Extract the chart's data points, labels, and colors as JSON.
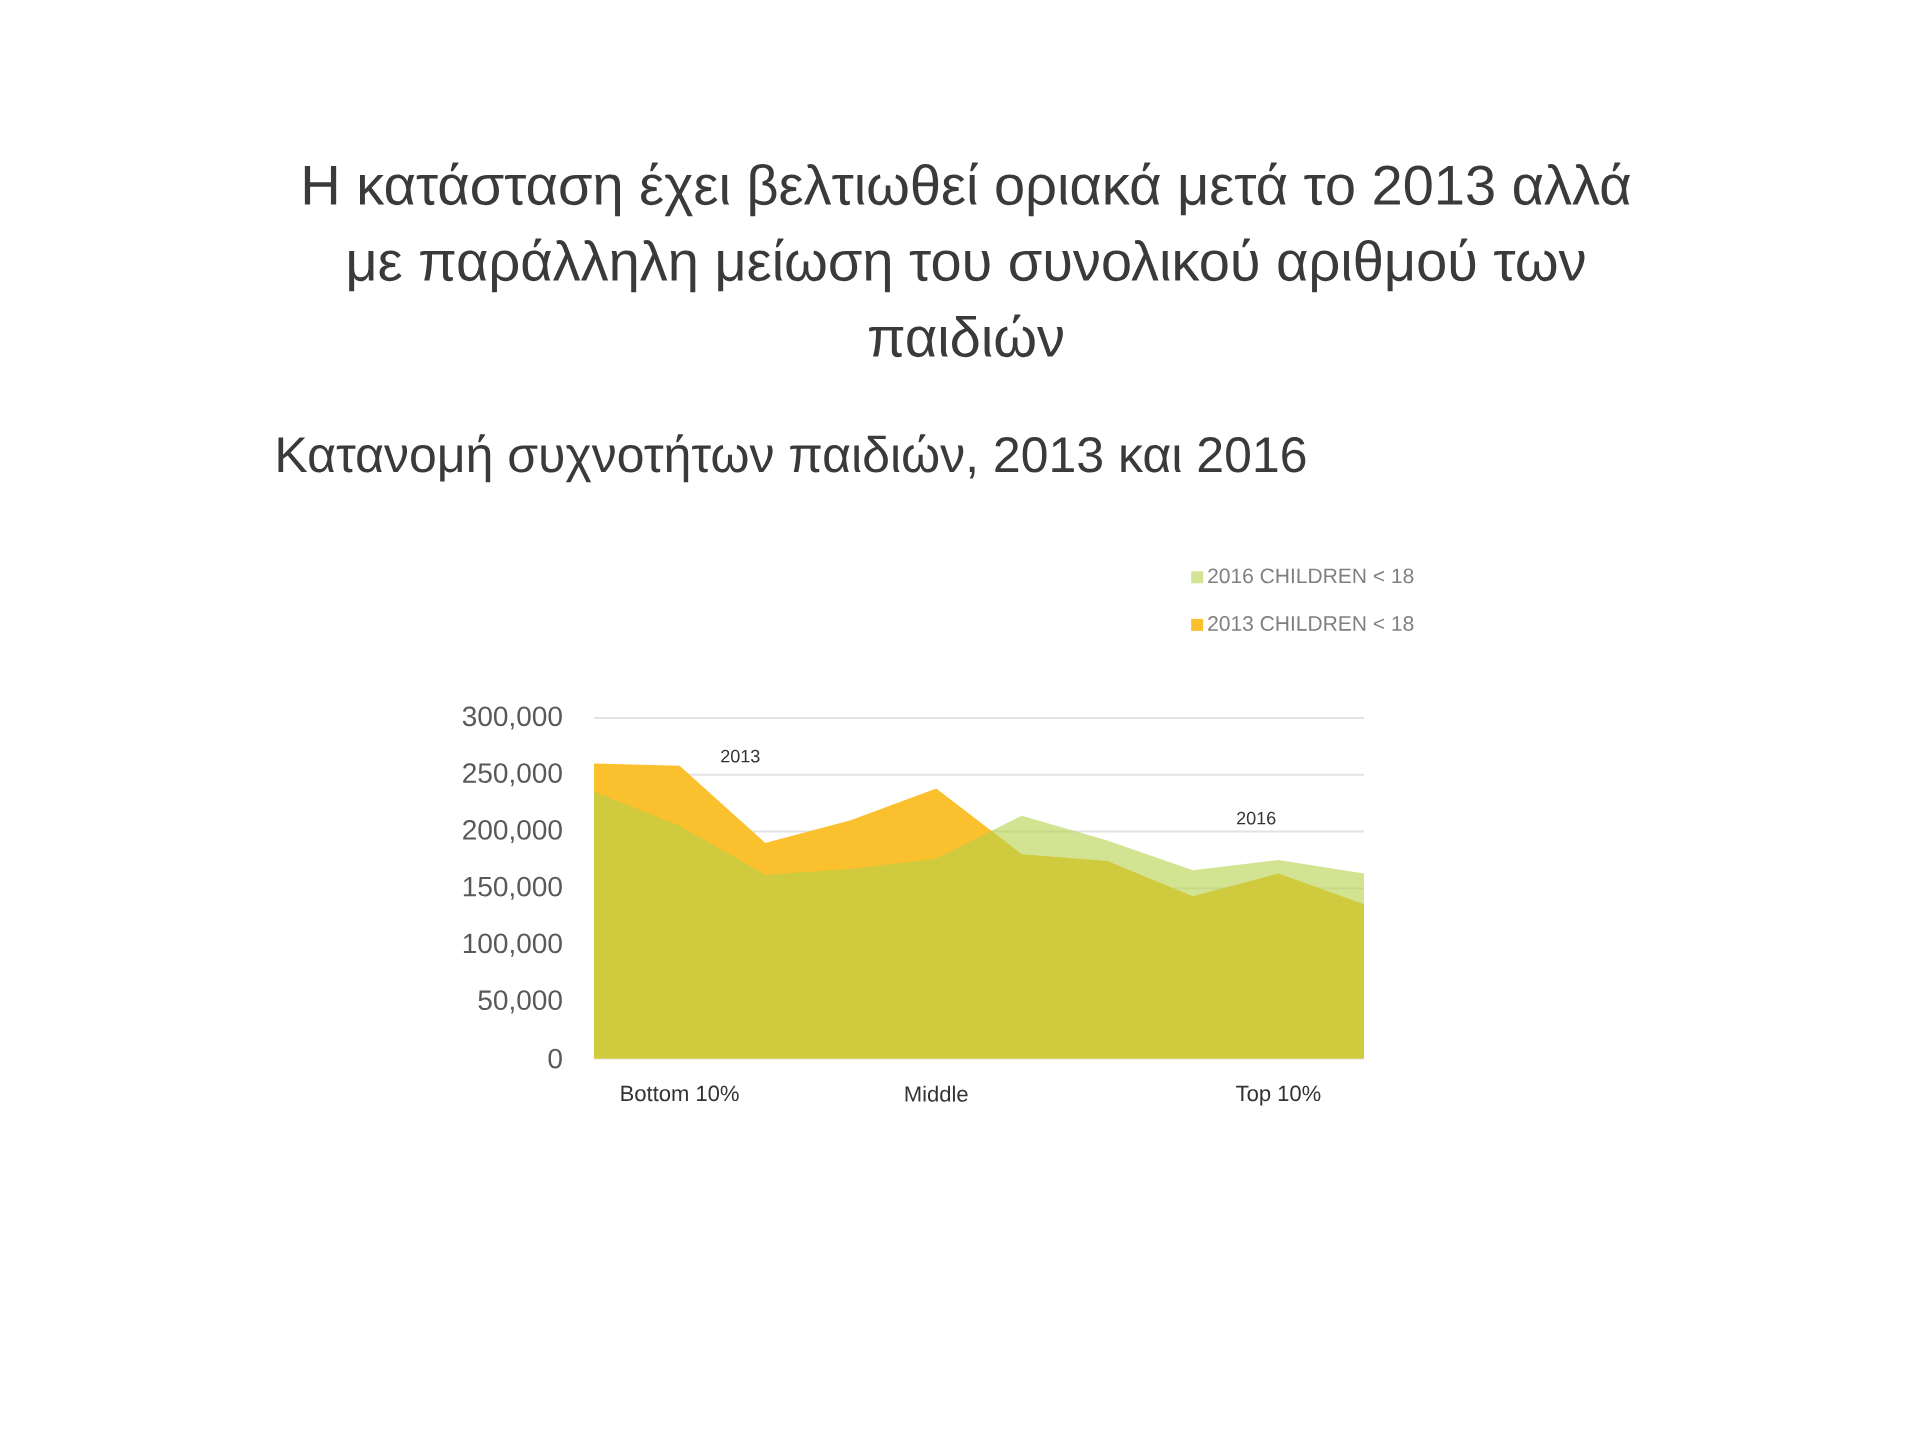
{
  "chart_data": {
    "type": "area",
    "title": "Η κατάσταση έχει βελτιωθεί οριακά μετά το 2013 αλλά με παράλληλη μείωση του συνολικού αριθμού των παιδιών",
    "subtitle": "Κατανομή συχνοτήτων παιδιών, 2013 και 2016",
    "categories": [
      null,
      "Bottom 10%",
      null,
      null,
      "Middle",
      null,
      null,
      null,
      "Top 10%",
      null
    ],
    "series": [
      {
        "name": "2013 CHILDREN < 18",
        "color": "#fbc02d",
        "values": [
          260000,
          258000,
          190000,
          210000,
          238000,
          180000,
          174000,
          143000,
          163000,
          136000
        ]
      },
      {
        "name": "2016 CHILDREN < 18",
        "color": "#b4d04a",
        "values": [
          235000,
          205000,
          162000,
          167000,
          176000,
          214000,
          192000,
          166000,
          175000,
          163000
        ]
      }
    ],
    "ylim": [
      0,
      300000
    ],
    "yticks": [
      0,
      {
        "value": 50000,
        "label": "50,000"
      },
      {
        "value": 100000,
        "label": "100,000"
      },
      {
        "value": 150000,
        "label": "150,000"
      },
      {
        "value": 200000,
        "label": "200,000"
      },
      {
        "value": 250000,
        "label": "250,000"
      },
      {
        "value": 300000,
        "label": "300,000"
      }
    ],
    "annotations": [
      "2013",
      "2016"
    ],
    "grid": "y",
    "legend": "top right"
  }
}
